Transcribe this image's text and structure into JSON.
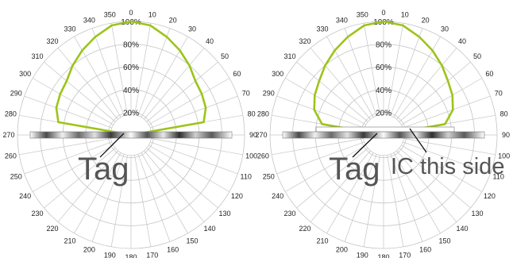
{
  "chart_data": [
    {
      "type": "polar-line",
      "theta": [
        0,
        10,
        20,
        30,
        40,
        50,
        60,
        70,
        80,
        90,
        100,
        110,
        120,
        130,
        140,
        150,
        160,
        170,
        180,
        190,
        200,
        210,
        220,
        230,
        240,
        250,
        260,
        270,
        280,
        290,
        300,
        310,
        320,
        330,
        340,
        350
      ],
      "theta_labels": [
        "0",
        "10",
        "20",
        "30",
        "40",
        "50",
        "60",
        "70",
        "80",
        "90",
        "100",
        "110",
        "120",
        "130",
        "140",
        "150",
        "160",
        "170",
        "180",
        "190",
        "200",
        "210",
        "220",
        "230",
        "240",
        "250",
        "260",
        "270",
        "280",
        "290",
        "300",
        "310",
        "320",
        "330",
        "340",
        "350"
      ],
      "r_ticks": [
        20,
        40,
        60,
        80,
        100
      ],
      "r_tick_labels": [
        "20%",
        "40%",
        "60%",
        "80%",
        "100%"
      ],
      "rlim": [
        0,
        100
      ],
      "grid": true,
      "series": [
        {
          "color": "#9dc41a",
          "points": [
            [
              0,
              100
            ],
            [
              10,
              98
            ],
            [
              20,
              92
            ],
            [
              30,
              86
            ],
            [
              40,
              80
            ],
            [
              50,
              74
            ],
            [
              60,
              72
            ],
            [
              70,
              70
            ],
            [
              80,
              65
            ],
            [
              90,
              0
            ],
            [
              270,
              0
            ],
            [
              280,
              65
            ],
            [
              290,
              70
            ],
            [
              300,
              72
            ],
            [
              310,
              74
            ],
            [
              320,
              80
            ],
            [
              330,
              86
            ],
            [
              340,
              92
            ],
            [
              350,
              98
            ]
          ]
        }
      ],
      "annotations": [
        {
          "label": "Tag"
        }
      ]
    },
    {
      "type": "polar-line",
      "theta": [
        0,
        10,
        20,
        30,
        40,
        50,
        60,
        70,
        80,
        90,
        100,
        110,
        120,
        130,
        140,
        150,
        160,
        170,
        180,
        190,
        200,
        210,
        220,
        230,
        240,
        250,
        260,
        270,
        280,
        290,
        300,
        310,
        320,
        330,
        340,
        350
      ],
      "theta_labels": [
        "0",
        "10",
        "20",
        "30",
        "40",
        "50",
        "60",
        "70",
        "80",
        "90",
        "100",
        "110",
        "120",
        "130",
        "140",
        "150",
        "160",
        "170",
        "180",
        "190",
        "200",
        "210",
        "220",
        "230",
        "240",
        "250",
        "260",
        "270",
        "280",
        "290",
        "300",
        "310",
        "320",
        "330",
        "340",
        "350"
      ],
      "r_ticks": [
        20,
        40,
        60,
        80,
        100
      ],
      "r_tick_labels": [
        "20%",
        "40%",
        "60%",
        "80%",
        "100%"
      ],
      "rlim": [
        0,
        100
      ],
      "grid": true,
      "series": [
        {
          "color": "#9dc41a",
          "points": [
            [
              0,
              100
            ],
            [
              10,
              98
            ],
            [
              20,
              92
            ],
            [
              30,
              86
            ],
            [
              40,
              80
            ],
            [
              50,
              74
            ],
            [
              60,
              70
            ],
            [
              70,
              65
            ],
            [
              80,
              55
            ],
            [
              90,
              0
            ],
            [
              270,
              0
            ],
            [
              280,
              55
            ],
            [
              290,
              65
            ],
            [
              300,
              70
            ],
            [
              310,
              74
            ],
            [
              320,
              80
            ],
            [
              330,
              86
            ],
            [
              340,
              92
            ],
            [
              350,
              98
            ]
          ]
        }
      ],
      "annotations": [
        {
          "label": "Tag"
        },
        {
          "label": "IC this side"
        }
      ]
    }
  ]
}
